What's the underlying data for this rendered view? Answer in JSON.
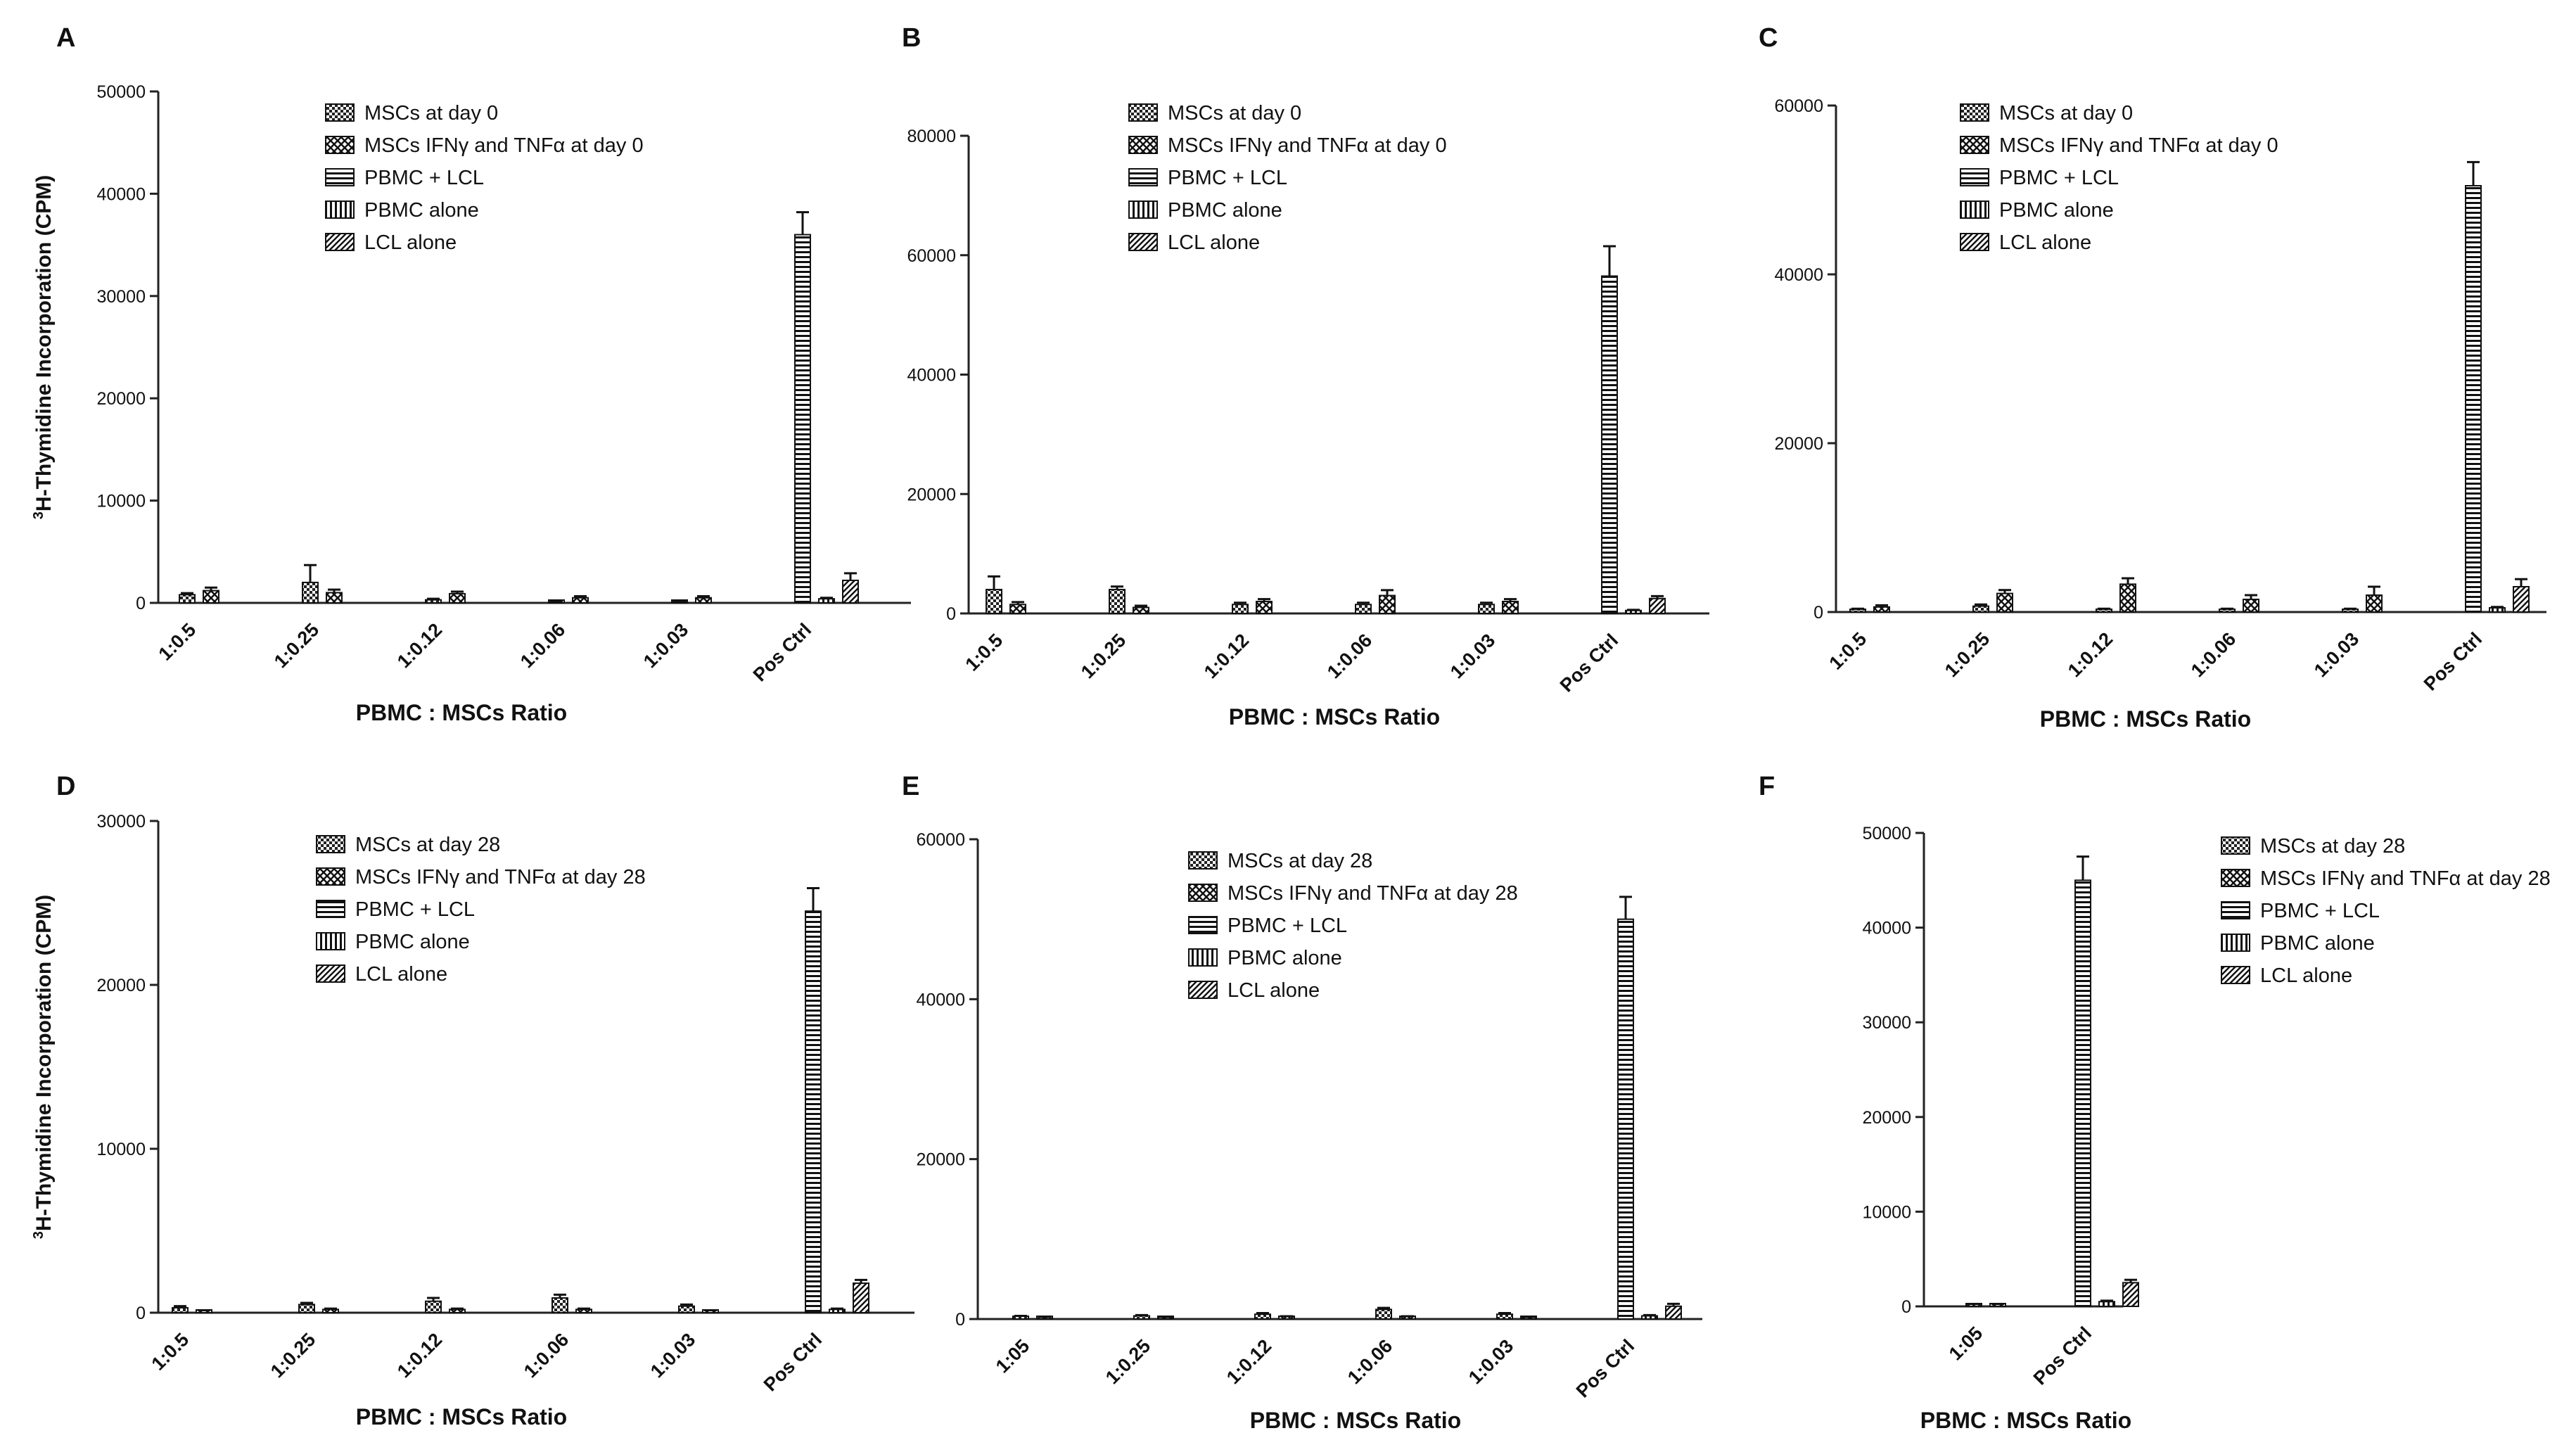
{
  "figure": {
    "legend_series_names": [
      "MSCs at day",
      "MSCs IFNγ and TNFα at day",
      "PBMC + LCL",
      "PBMC alone",
      "LCL alone"
    ]
  },
  "chart_data": [
    {
      "panel": "A",
      "type": "bar",
      "ylabel_super": "3",
      "ylabel": "H-Thymidine Incorporation (CPM)",
      "xlabel": "PBMC : MSCs Ratio",
      "ylim": [
        0,
        50000
      ],
      "yticks": [
        0,
        10000,
        20000,
        30000,
        40000,
        50000
      ],
      "categories": [
        "1:0.5",
        "1:0.25",
        "1:0.12",
        "1:0.06",
        "1:0.03",
        "Pos Ctrl"
      ],
      "legend": [
        "MSCs at day 0",
        "MSCs IFNγ and TNFα at day 0",
        "PBMC + LCL",
        "PBMC alone",
        "LCL alone"
      ],
      "series": [
        {
          "name": "MSCs at day 0",
          "pattern": "checker",
          "values": [
            800,
            2000,
            300,
            100,
            100,
            null
          ],
          "errors": [
            150,
            1700,
            100,
            50,
            50,
            null
          ]
        },
        {
          "name": "MSCs IFNγ and TNFα at day 0",
          "pattern": "cross",
          "values": [
            1200,
            1000,
            900,
            500,
            500,
            null
          ],
          "errors": [
            300,
            300,
            200,
            150,
            150,
            null
          ]
        },
        {
          "name": "PBMC + LCL",
          "pattern": "hstripe",
          "values": [
            null,
            null,
            null,
            null,
            null,
            36000
          ],
          "errors": [
            null,
            null,
            null,
            null,
            null,
            2200
          ]
        },
        {
          "name": "PBMC alone",
          "pattern": "vstripe",
          "values": [
            null,
            null,
            null,
            null,
            null,
            400
          ],
          "errors": [
            null,
            null,
            null,
            null,
            null,
            100
          ]
        },
        {
          "name": "LCL alone",
          "pattern": "diag",
          "values": [
            null,
            null,
            null,
            null,
            null,
            2200
          ],
          "errors": [
            null,
            null,
            null,
            null,
            null,
            700
          ]
        }
      ]
    },
    {
      "panel": "B",
      "type": "bar",
      "xlabel": "PBMC : MSCs Ratio",
      "ylim": [
        0,
        80000
      ],
      "yticks": [
        0,
        20000,
        40000,
        60000,
        80000
      ],
      "categories": [
        "1:0.5",
        "1:0.25",
        "1:0.12",
        "1:0.06",
        "1:0.03",
        "Pos Ctrl"
      ],
      "legend": [
        "MSCs at day 0",
        "MSCs IFNγ and TNFα at day 0",
        "PBMC + LCL",
        "PBMC  alone",
        "LCL alone"
      ],
      "series": [
        {
          "name": "MSCs at day 0",
          "pattern": "checker",
          "values": [
            4000,
            4000,
            1500,
            1500,
            1500,
            null
          ],
          "errors": [
            2200,
            500,
            300,
            300,
            300,
            null
          ]
        },
        {
          "name": "MSCs IFNγ and TNFα at day 0",
          "pattern": "cross",
          "values": [
            1500,
            1000,
            2000,
            3000,
            2000,
            null
          ],
          "errors": [
            400,
            300,
            400,
            900,
            400,
            null
          ]
        },
        {
          "name": "PBMC + LCL",
          "pattern": "hstripe",
          "values": [
            null,
            null,
            null,
            null,
            null,
            56500
          ],
          "errors": [
            null,
            null,
            null,
            null,
            null,
            5000
          ]
        },
        {
          "name": "PBMC alone",
          "pattern": "vstripe",
          "values": [
            null,
            null,
            null,
            null,
            null,
            500
          ],
          "errors": [
            null,
            null,
            null,
            null,
            null,
            100
          ]
        },
        {
          "name": "LCL alone",
          "pattern": "diag",
          "values": [
            null,
            null,
            null,
            null,
            null,
            2500
          ],
          "errors": [
            null,
            null,
            null,
            null,
            null,
            400
          ]
        }
      ]
    },
    {
      "panel": "C",
      "type": "bar",
      "xlabel": "PBMC : MSCs Ratio",
      "ylim": [
        0,
        60000
      ],
      "yticks": [
        0,
        20000,
        40000,
        60000
      ],
      "categories": [
        "1:0.5",
        "1:0.25",
        "1:0.12",
        "1:0.06",
        "1:0.03",
        "Pos Ctrl"
      ],
      "legend": [
        "MSCs at day 0",
        "MSCs IFNγ and TNFα at day 0",
        "PBMC + LCL",
        "PBMC  alone",
        "LCL alone"
      ],
      "series": [
        {
          "name": "MSCs at day 0",
          "pattern": "checker",
          "values": [
            300,
            700,
            300,
            300,
            300,
            null
          ],
          "errors": [
            100,
            200,
            100,
            100,
            100,
            null
          ]
        },
        {
          "name": "MSCs IFNγ and TNFα at day 0",
          "pattern": "cross",
          "values": [
            600,
            2200,
            3300,
            1500,
            2000,
            null
          ],
          "errors": [
            200,
            400,
            700,
            500,
            1000,
            null
          ]
        },
        {
          "name": "PBMC + LCL",
          "pattern": "hstripe",
          "values": [
            null,
            null,
            null,
            null,
            null,
            50500
          ],
          "errors": [
            null,
            null,
            null,
            null,
            null,
            2800
          ]
        },
        {
          "name": "PBMC alone",
          "pattern": "vstripe",
          "values": [
            null,
            null,
            null,
            null,
            null,
            500
          ],
          "errors": [
            null,
            null,
            null,
            null,
            null,
            100
          ]
        },
        {
          "name": "LCL alone",
          "pattern": "diag",
          "values": [
            null,
            null,
            null,
            null,
            null,
            3000
          ],
          "errors": [
            null,
            null,
            null,
            null,
            null,
            900
          ]
        }
      ]
    },
    {
      "panel": "D",
      "type": "bar",
      "ylabel_super": "3",
      "ylabel": "H-Thymidine Incorporation (CPM)",
      "xlabel": "PBMC : MSCs Ratio",
      "ylim": [
        0,
        30000
      ],
      "yticks": [
        0,
        10000,
        20000,
        30000
      ],
      "categories": [
        "1:0.5",
        "1:0.25",
        "1:0.12",
        "1:0.06",
        "1:0.03",
        "Pos Ctrl"
      ],
      "legend": [
        "MSCs at day 28",
        "MSCs IFNγ and TNFα at day 28",
        "PBMC + LCL",
        "PBMC alone",
        "LCL alone"
      ],
      "series": [
        {
          "name": "MSCs at day 28",
          "pattern": "checker",
          "values": [
            300,
            500,
            700,
            900,
            400,
            null
          ],
          "errors": [
            100,
            100,
            200,
            200,
            100,
            null
          ]
        },
        {
          "name": "MSCs IFNγ and TNFα at day 28",
          "pattern": "cross",
          "values": [
            100,
            200,
            200,
            200,
            100,
            null
          ],
          "errors": [
            50,
            50,
            50,
            50,
            50,
            null
          ]
        },
        {
          "name": "PBMC + LCL",
          "pattern": "hstripe",
          "values": [
            null,
            null,
            null,
            null,
            null,
            24500
          ],
          "errors": [
            null,
            null,
            null,
            null,
            null,
            1400
          ]
        },
        {
          "name": "PBMC alone",
          "pattern": "vstripe",
          "values": [
            null,
            null,
            null,
            null,
            null,
            200
          ],
          "errors": [
            null,
            null,
            null,
            null,
            null,
            50
          ]
        },
        {
          "name": "LCL alone",
          "pattern": "diag",
          "values": [
            null,
            null,
            null,
            null,
            null,
            1800
          ],
          "errors": [
            null,
            null,
            null,
            null,
            null,
            200
          ]
        }
      ]
    },
    {
      "panel": "E",
      "type": "bar",
      "xlabel": "PBMC : MSCs Ratio",
      "ylim": [
        0,
        60000
      ],
      "yticks": [
        0,
        20000,
        40000,
        60000
      ],
      "categories": [
        "1:05",
        "1:0.25",
        "1:0.12",
        "1:0.06",
        "1:0.03",
        "Pos Ctrl"
      ],
      "legend": [
        "MSCs at day 28",
        "MSCs IFNγ and TNFα at day 28",
        "PBMC + LCL",
        "PBMC  alone",
        "LCL alone"
      ],
      "series": [
        {
          "name": "MSCs at day 28",
          "pattern": "checker",
          "values": [
            300,
            400,
            600,
            1200,
            600,
            null
          ],
          "errors": [
            100,
            100,
            150,
            200,
            150,
            null
          ]
        },
        {
          "name": "MSCs IFNγ and TNFα at day 28",
          "pattern": "cross",
          "values": [
            200,
            200,
            300,
            300,
            200,
            null
          ],
          "errors": [
            50,
            50,
            50,
            50,
            50,
            null
          ]
        },
        {
          "name": "PBMC + LCL",
          "pattern": "hstripe",
          "values": [
            null,
            null,
            null,
            null,
            null,
            50000
          ],
          "errors": [
            null,
            null,
            null,
            null,
            null,
            2800
          ]
        },
        {
          "name": "PBMC alone",
          "pattern": "vstripe",
          "values": [
            null,
            null,
            null,
            null,
            null,
            400
          ],
          "errors": [
            null,
            null,
            null,
            null,
            null,
            100
          ]
        },
        {
          "name": "LCL alone",
          "pattern": "diag",
          "values": [
            null,
            null,
            null,
            null,
            null,
            1600
          ],
          "errors": [
            null,
            null,
            null,
            null,
            null,
            300
          ]
        }
      ]
    },
    {
      "panel": "F",
      "type": "bar",
      "xlabel": "PBMC : MSCs Ratio",
      "ylim": [
        0,
        50000
      ],
      "yticks": [
        0,
        10000,
        20000,
        30000,
        40000,
        50000
      ],
      "categories": [
        "1:05",
        "Pos Ctrl"
      ],
      "legend": [
        "MSCs at day 28",
        "MSCs IFNγ and TNFα at day 28",
        "PBMC + LCL",
        "PBMC alone",
        "LCL alone"
      ],
      "series": [
        {
          "name": "MSCs at day 28",
          "pattern": "checker",
          "values": [
            200,
            null
          ],
          "errors": [
            50,
            null
          ]
        },
        {
          "name": "MSCs IFNγ and TNFα at day 28",
          "pattern": "cross",
          "values": [
            200,
            null
          ],
          "errors": [
            50,
            null
          ]
        },
        {
          "name": "PBMC + LCL",
          "pattern": "hstripe",
          "values": [
            null,
            45000
          ],
          "errors": [
            null,
            2500
          ]
        },
        {
          "name": "PBMC alone",
          "pattern": "vstripe",
          "values": [
            null,
            500
          ],
          "errors": [
            null,
            100
          ]
        },
        {
          "name": "LCL alone",
          "pattern": "diag",
          "values": [
            null,
            2500
          ],
          "errors": [
            null,
            300
          ]
        }
      ]
    }
  ]
}
